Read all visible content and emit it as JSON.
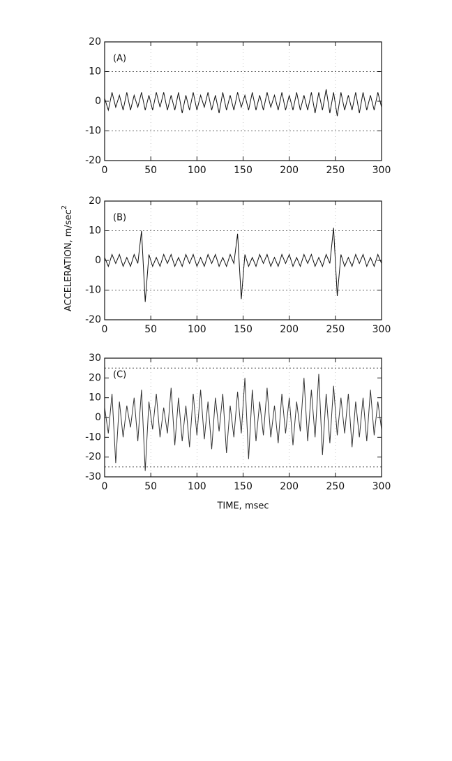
{
  "chart_data": [
    {
      "type": "line",
      "label": "(A)",
      "color": "#111111",
      "x": [
        0,
        4,
        8,
        12,
        16,
        20,
        24,
        28,
        32,
        36,
        40,
        44,
        48,
        52,
        56,
        60,
        64,
        68,
        72,
        76,
        80,
        84,
        88,
        92,
        96,
        100,
        104,
        108,
        112,
        116,
        120,
        124,
        128,
        132,
        136,
        140,
        144,
        148,
        152,
        156,
        160,
        164,
        168,
        172,
        176,
        180,
        184,
        188,
        192,
        196,
        200,
        204,
        208,
        212,
        216,
        220,
        224,
        228,
        232,
        236,
        240,
        244,
        248,
        252,
        256,
        260,
        264,
        268,
        272,
        276,
        280,
        284,
        288,
        292,
        296,
        300
      ],
      "values": [
        1,
        -3,
        3,
        -2,
        2,
        -3,
        3,
        -3,
        2,
        -2,
        3,
        -3,
        2,
        -3,
        3,
        -2,
        3,
        -3,
        2,
        -3,
        3,
        -4,
        2,
        -3,
        3,
        -3,
        2,
        -2,
        3,
        -3,
        2,
        -4,
        3,
        -3,
        2,
        -3,
        3,
        -2,
        2,
        -3,
        3,
        -3,
        2,
        -3,
        3,
        -2,
        2,
        -3,
        3,
        -3,
        2,
        -3,
        3,
        -3,
        2,
        -3,
        3,
        -4,
        3,
        -3,
        4,
        -4,
        3,
        -5,
        3,
        -3,
        2,
        -3,
        3,
        -4,
        3,
        -3,
        2,
        -3,
        3,
        -2
      ],
      "xlim": [
        0,
        300
      ],
      "xticks": [
        0,
        50,
        100,
        150,
        200,
        250,
        300
      ],
      "ylim": [
        -20,
        20
      ],
      "yticks": [
        20,
        10,
        0,
        -10,
        -20
      ],
      "hlines": [
        10,
        -10
      ],
      "grid": true
    },
    {
      "type": "line",
      "label": "(B)",
      "color": "#111111",
      "ylabel": "ACCELERATION, m/sec",
      "ylabel_sup": "2",
      "x": [
        0,
        4,
        8,
        12,
        16,
        20,
        24,
        28,
        32,
        36,
        40,
        44,
        48,
        52,
        56,
        60,
        64,
        68,
        72,
        76,
        80,
        84,
        88,
        92,
        96,
        100,
        104,
        108,
        112,
        116,
        120,
        124,
        128,
        132,
        136,
        140,
        144,
        148,
        152,
        156,
        160,
        164,
        168,
        172,
        176,
        180,
        184,
        188,
        192,
        196,
        200,
        204,
        208,
        212,
        216,
        220,
        224,
        228,
        232,
        236,
        240,
        244,
        248,
        252,
        256,
        260,
        264,
        268,
        272,
        276,
        280,
        284,
        288,
        292,
        296,
        300
      ],
      "values": [
        1,
        -2,
        2,
        -1,
        2,
        -2,
        1,
        -2,
        2,
        -1,
        10,
        -14,
        2,
        -2,
        1,
        -2,
        2,
        -1,
        2,
        -2,
        1,
        -2,
        2,
        -1,
        2,
        -2,
        1,
        -2,
        2,
        -1,
        2,
        -2,
        1,
        -2,
        2,
        -1,
        9,
        -13,
        2,
        -2,
        1,
        -2,
        2,
        -1,
        2,
        -2,
        1,
        -2,
        2,
        -1,
        2,
        -2,
        1,
        -2,
        2,
        -1,
        2,
        -2,
        1,
        -2,
        2,
        -1,
        11,
        -12,
        2,
        -2,
        1,
        -2,
        2,
        -1,
        2,
        -2,
        1,
        -2,
        2,
        -1
      ],
      "xlim": [
        0,
        300
      ],
      "xticks": [
        0,
        50,
        100,
        150,
        200,
        250,
        300
      ],
      "ylim": [
        -20,
        20
      ],
      "yticks": [
        20,
        10,
        0,
        -10,
        -20
      ],
      "hlines": [
        10,
        -10
      ],
      "grid": true
    },
    {
      "type": "line",
      "label": "(C)",
      "color": "#333333",
      "xlabel": "TIME, msec",
      "x": [
        0,
        4,
        8,
        12,
        16,
        20,
        24,
        28,
        32,
        36,
        40,
        44,
        48,
        52,
        56,
        60,
        64,
        68,
        72,
        76,
        80,
        84,
        88,
        92,
        96,
        100,
        104,
        108,
        112,
        116,
        120,
        124,
        128,
        132,
        136,
        140,
        144,
        148,
        152,
        156,
        160,
        164,
        168,
        172,
        176,
        180,
        184,
        188,
        192,
        196,
        200,
        204,
        208,
        212,
        216,
        220,
        224,
        228,
        232,
        236,
        240,
        244,
        248,
        252,
        256,
        260,
        264,
        268,
        272,
        276,
        280,
        284,
        288,
        292,
        296,
        300
      ],
      "values": [
        5,
        -8,
        12,
        -23,
        8,
        -10,
        6,
        -5,
        10,
        -12,
        14,
        -27,
        8,
        -6,
        12,
        -10,
        5,
        -8,
        15,
        -14,
        10,
        -12,
        6,
        -15,
        12,
        -9,
        14,
        -11,
        8,
        -16,
        10,
        -7,
        12,
        -18,
        6,
        -10,
        13,
        -8,
        20,
        -21,
        14,
        -12,
        8,
        -9,
        15,
        -10,
        6,
        -13,
        12,
        -8,
        10,
        -14,
        8,
        -7,
        20,
        -12,
        14,
        -10,
        22,
        -19,
        12,
        -13,
        16,
        -9,
        10,
        -8,
        12,
        -15,
        8,
        -10,
        10,
        -12,
        14,
        -9,
        8,
        -6
      ],
      "xlim": [
        0,
        300
      ],
      "xticks": [
        0,
        50,
        100,
        150,
        200,
        250,
        300
      ],
      "ylim": [
        -30,
        30
      ],
      "yticks": [
        30,
        20,
        10,
        0,
        -10,
        -20,
        -30
      ],
      "hlines": [
        25,
        -25
      ],
      "grid": true
    }
  ]
}
